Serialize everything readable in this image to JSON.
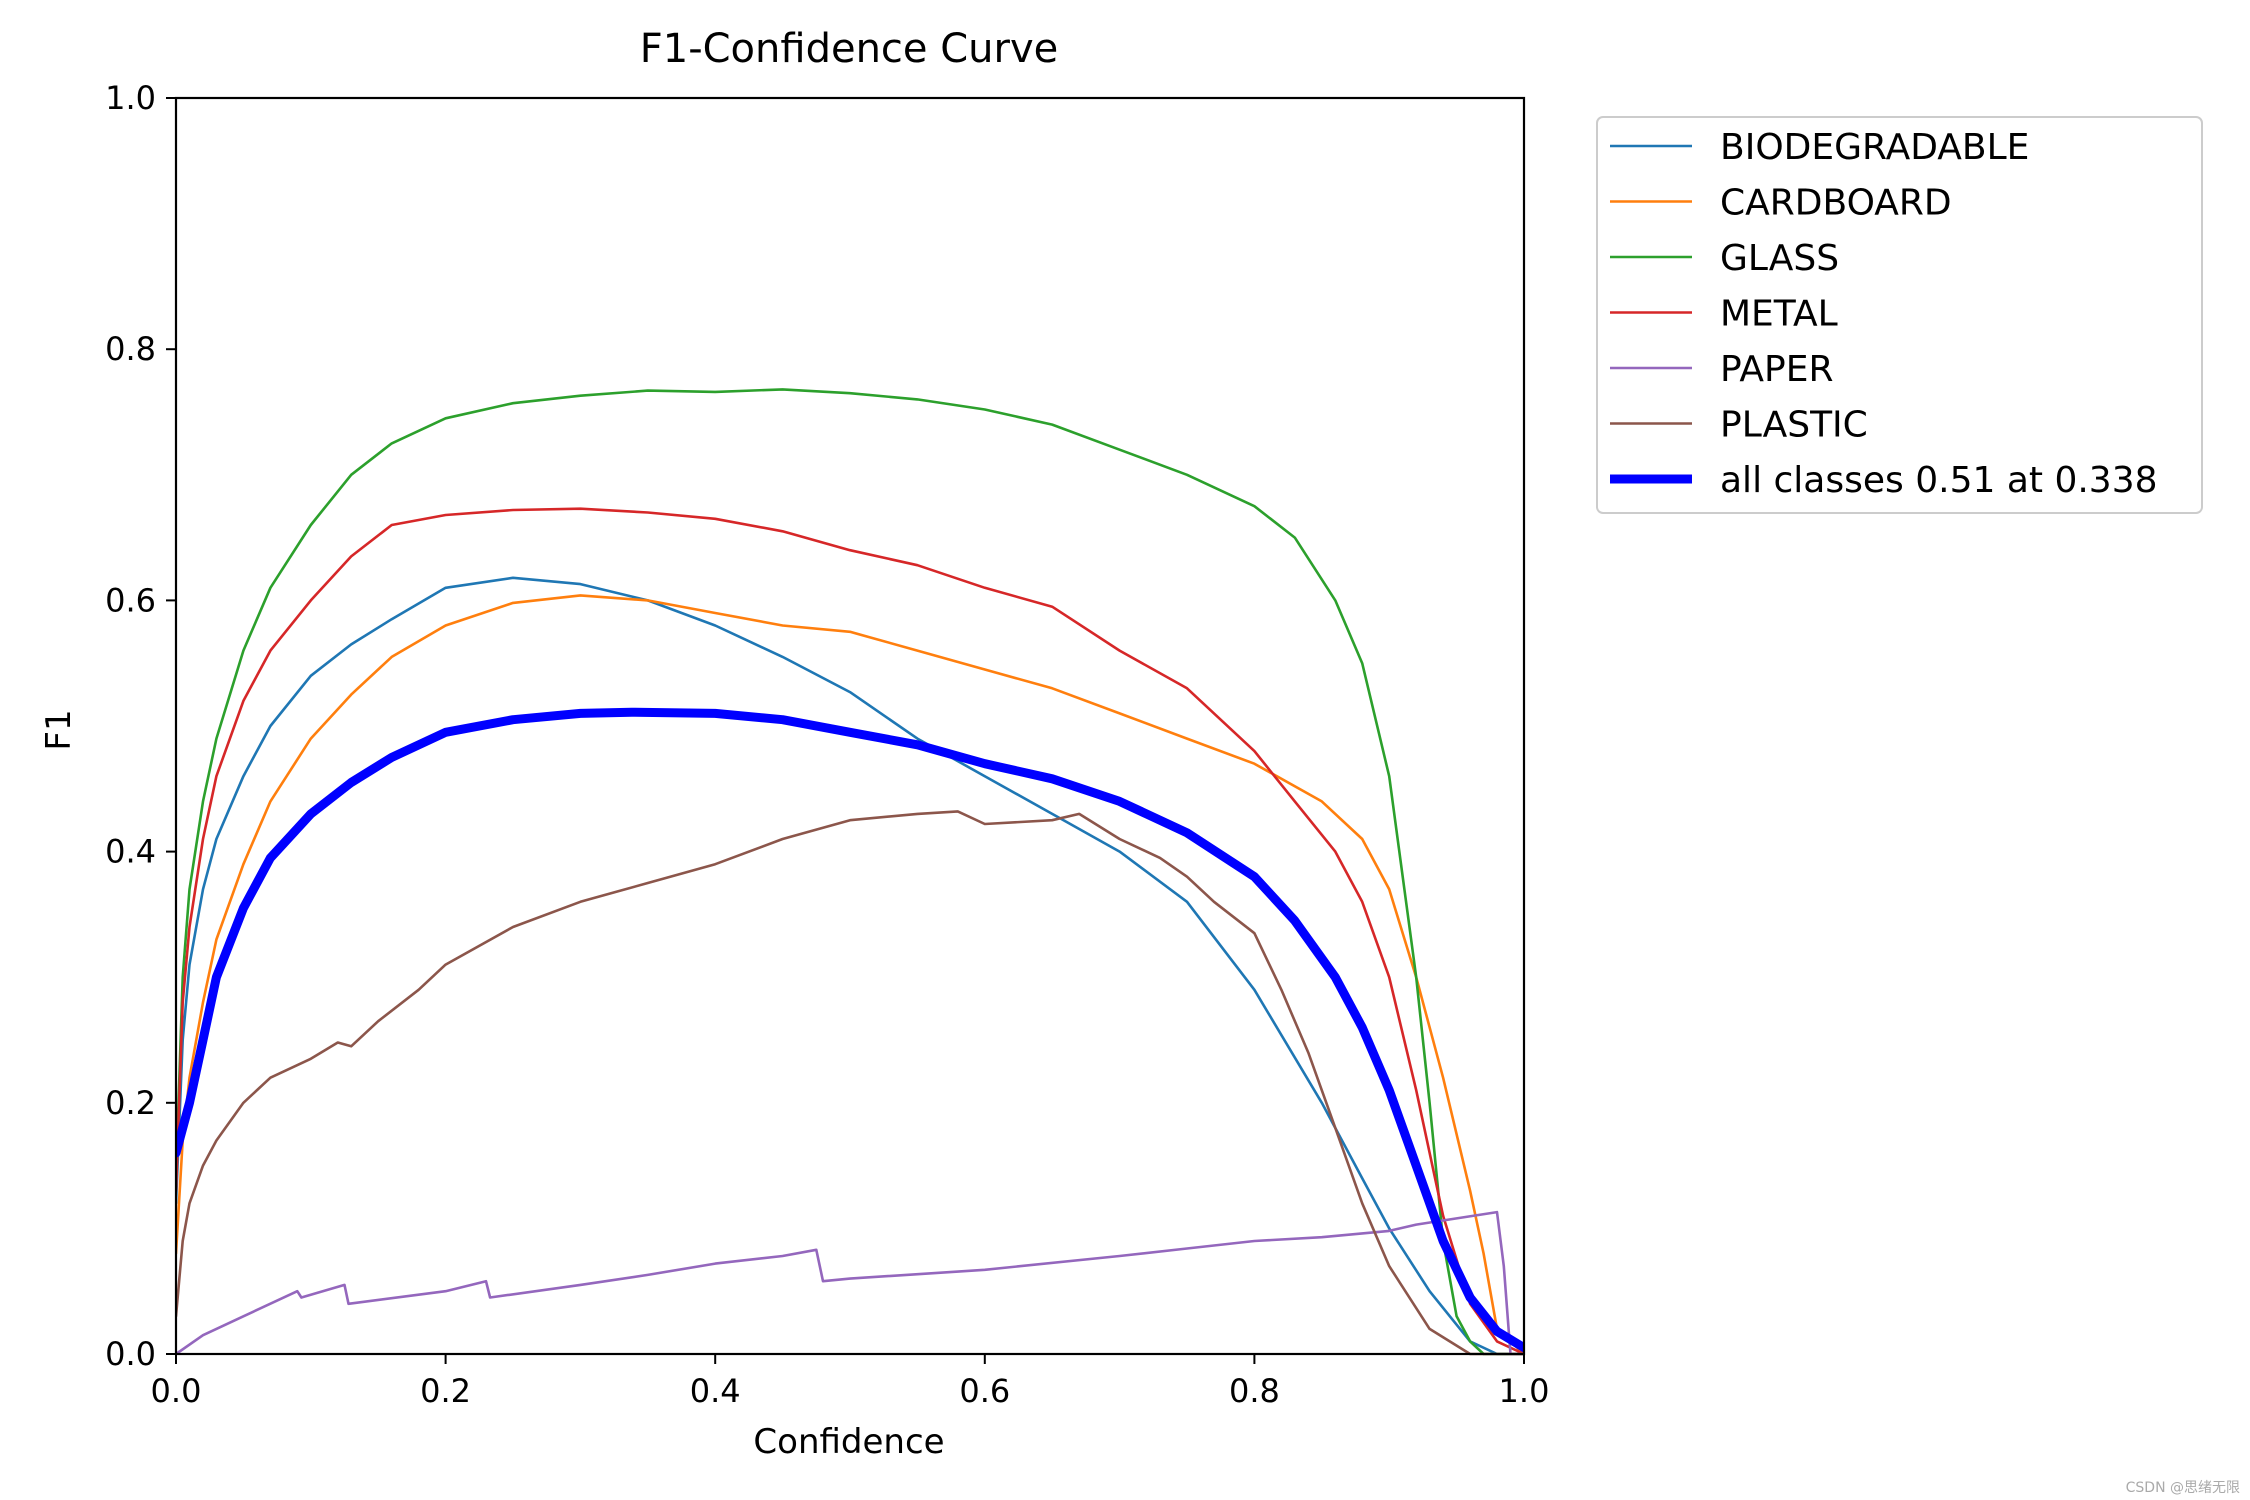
{
  "chart_data": {
    "type": "line",
    "title": "F1-Confidence Curve",
    "xlabel": "Confidence",
    "ylabel": "F1",
    "xlim": [
      0.0,
      1.0
    ],
    "ylim": [
      0.0,
      1.0
    ],
    "xticks": [
      "0.0",
      "0.2",
      "0.4",
      "0.6",
      "0.8",
      "1.0"
    ],
    "yticks": [
      "0.0",
      "0.2",
      "0.4",
      "0.6",
      "0.8",
      "1.0"
    ],
    "grid": false,
    "legend_position": "outside-top-right",
    "series": [
      {
        "name": "BIODEGRADABLE",
        "color": "#1f77b4",
        "thick": false,
        "x": [
          0.0,
          0.005,
          0.01,
          0.02,
          0.03,
          0.05,
          0.07,
          0.1,
          0.13,
          0.16,
          0.2,
          0.25,
          0.3,
          0.35,
          0.4,
          0.45,
          0.5,
          0.55,
          0.6,
          0.65,
          0.7,
          0.75,
          0.8,
          0.85,
          0.88,
          0.9,
          0.93,
          0.96,
          0.98,
          1.0
        ],
        "values": [
          0.12,
          0.25,
          0.31,
          0.37,
          0.41,
          0.46,
          0.5,
          0.54,
          0.565,
          0.585,
          0.61,
          0.618,
          0.613,
          0.6,
          0.58,
          0.555,
          0.527,
          0.49,
          0.46,
          0.43,
          0.4,
          0.36,
          0.29,
          0.2,
          0.14,
          0.1,
          0.05,
          0.01,
          0.0,
          0.0
        ]
      },
      {
        "name": "CARDBOARD",
        "color": "#ff7f0e",
        "thick": false,
        "x": [
          0.0,
          0.005,
          0.01,
          0.02,
          0.03,
          0.05,
          0.07,
          0.1,
          0.13,
          0.16,
          0.2,
          0.25,
          0.3,
          0.35,
          0.4,
          0.45,
          0.5,
          0.55,
          0.6,
          0.65,
          0.7,
          0.75,
          0.8,
          0.85,
          0.88,
          0.9,
          0.92,
          0.94,
          0.96,
          0.97,
          0.98,
          1.0
        ],
        "values": [
          0.08,
          0.17,
          0.22,
          0.28,
          0.33,
          0.39,
          0.44,
          0.49,
          0.525,
          0.555,
          0.58,
          0.598,
          0.604,
          0.6,
          0.59,
          0.58,
          0.575,
          0.56,
          0.545,
          0.53,
          0.51,
          0.49,
          0.47,
          0.44,
          0.41,
          0.37,
          0.3,
          0.22,
          0.13,
          0.08,
          0.02,
          0.0
        ]
      },
      {
        "name": "GLASS",
        "color": "#2ca02c",
        "thick": false,
        "x": [
          0.0,
          0.005,
          0.01,
          0.02,
          0.03,
          0.05,
          0.07,
          0.1,
          0.13,
          0.16,
          0.2,
          0.25,
          0.3,
          0.35,
          0.4,
          0.45,
          0.5,
          0.55,
          0.6,
          0.65,
          0.7,
          0.75,
          0.8,
          0.83,
          0.86,
          0.88,
          0.9,
          0.91,
          0.92,
          0.93,
          0.94,
          0.95,
          0.96,
          0.97,
          0.98,
          1.0
        ],
        "values": [
          0.14,
          0.3,
          0.37,
          0.44,
          0.49,
          0.56,
          0.61,
          0.66,
          0.7,
          0.725,
          0.745,
          0.757,
          0.763,
          0.767,
          0.766,
          0.768,
          0.765,
          0.76,
          0.752,
          0.74,
          0.72,
          0.7,
          0.675,
          0.65,
          0.6,
          0.55,
          0.46,
          0.38,
          0.3,
          0.2,
          0.09,
          0.03,
          0.01,
          0.0,
          0.0,
          0.0
        ]
      },
      {
        "name": "METAL",
        "color": "#d62728",
        "thick": false,
        "x": [
          0.0,
          0.005,
          0.01,
          0.02,
          0.03,
          0.05,
          0.07,
          0.1,
          0.13,
          0.16,
          0.2,
          0.25,
          0.3,
          0.35,
          0.4,
          0.45,
          0.5,
          0.55,
          0.6,
          0.65,
          0.7,
          0.75,
          0.8,
          0.83,
          0.86,
          0.88,
          0.9,
          0.92,
          0.94,
          0.96,
          0.98,
          1.0
        ],
        "values": [
          0.13,
          0.28,
          0.34,
          0.41,
          0.46,
          0.52,
          0.56,
          0.6,
          0.635,
          0.66,
          0.668,
          0.672,
          0.673,
          0.67,
          0.665,
          0.655,
          0.64,
          0.628,
          0.61,
          0.595,
          0.56,
          0.53,
          0.48,
          0.44,
          0.4,
          0.36,
          0.3,
          0.21,
          0.11,
          0.04,
          0.01,
          0.0
        ]
      },
      {
        "name": "PAPER",
        "color": "#9467bd",
        "thick": false,
        "x": [
          0.0,
          0.02,
          0.05,
          0.09,
          0.093,
          0.125,
          0.128,
          0.2,
          0.23,
          0.233,
          0.3,
          0.35,
          0.4,
          0.45,
          0.475,
          0.48,
          0.5,
          0.6,
          0.7,
          0.75,
          0.8,
          0.85,
          0.9,
          0.92,
          0.95,
          0.98,
          0.985,
          0.99,
          1.0
        ],
        "values": [
          0.0,
          0.015,
          0.03,
          0.05,
          0.045,
          0.055,
          0.04,
          0.05,
          0.058,
          0.045,
          0.055,
          0.063,
          0.072,
          0.078,
          0.083,
          0.058,
          0.06,
          0.067,
          0.078,
          0.084,
          0.09,
          0.093,
          0.098,
          0.103,
          0.108,
          0.113,
          0.07,
          0.0,
          0.0
        ]
      },
      {
        "name": "PLASTIC",
        "color": "#8c564b",
        "thick": false,
        "x": [
          0.0,
          0.005,
          0.01,
          0.02,
          0.03,
          0.05,
          0.07,
          0.1,
          0.12,
          0.13,
          0.15,
          0.18,
          0.2,
          0.25,
          0.3,
          0.35,
          0.4,
          0.45,
          0.5,
          0.55,
          0.58,
          0.6,
          0.65,
          0.67,
          0.7,
          0.73,
          0.75,
          0.77,
          0.8,
          0.82,
          0.84,
          0.86,
          0.88,
          0.9,
          0.93,
          0.96,
          1.0
        ],
        "values": [
          0.03,
          0.09,
          0.12,
          0.15,
          0.17,
          0.2,
          0.22,
          0.235,
          0.248,
          0.245,
          0.265,
          0.29,
          0.31,
          0.34,
          0.36,
          0.375,
          0.39,
          0.41,
          0.425,
          0.43,
          0.432,
          0.422,
          0.425,
          0.43,
          0.41,
          0.395,
          0.38,
          0.36,
          0.335,
          0.29,
          0.24,
          0.18,
          0.12,
          0.07,
          0.02,
          0.0,
          0.0
        ]
      },
      {
        "name": "all classes 0.51 at 0.338",
        "color": "#0000ff",
        "thick": true,
        "x": [
          0.0,
          0.01,
          0.02,
          0.03,
          0.05,
          0.07,
          0.1,
          0.13,
          0.16,
          0.2,
          0.25,
          0.3,
          0.338,
          0.4,
          0.45,
          0.5,
          0.55,
          0.6,
          0.65,
          0.7,
          0.75,
          0.8,
          0.83,
          0.86,
          0.88,
          0.9,
          0.92,
          0.94,
          0.96,
          0.98,
          1.0
        ],
        "values": [
          0.16,
          0.2,
          0.25,
          0.3,
          0.355,
          0.395,
          0.43,
          0.455,
          0.475,
          0.495,
          0.505,
          0.51,
          0.511,
          0.51,
          0.505,
          0.495,
          0.485,
          0.47,
          0.458,
          0.44,
          0.415,
          0.38,
          0.345,
          0.3,
          0.26,
          0.21,
          0.15,
          0.09,
          0.045,
          0.018,
          0.005
        ]
      }
    ]
  },
  "watermark": "CSDN @思绪无限"
}
